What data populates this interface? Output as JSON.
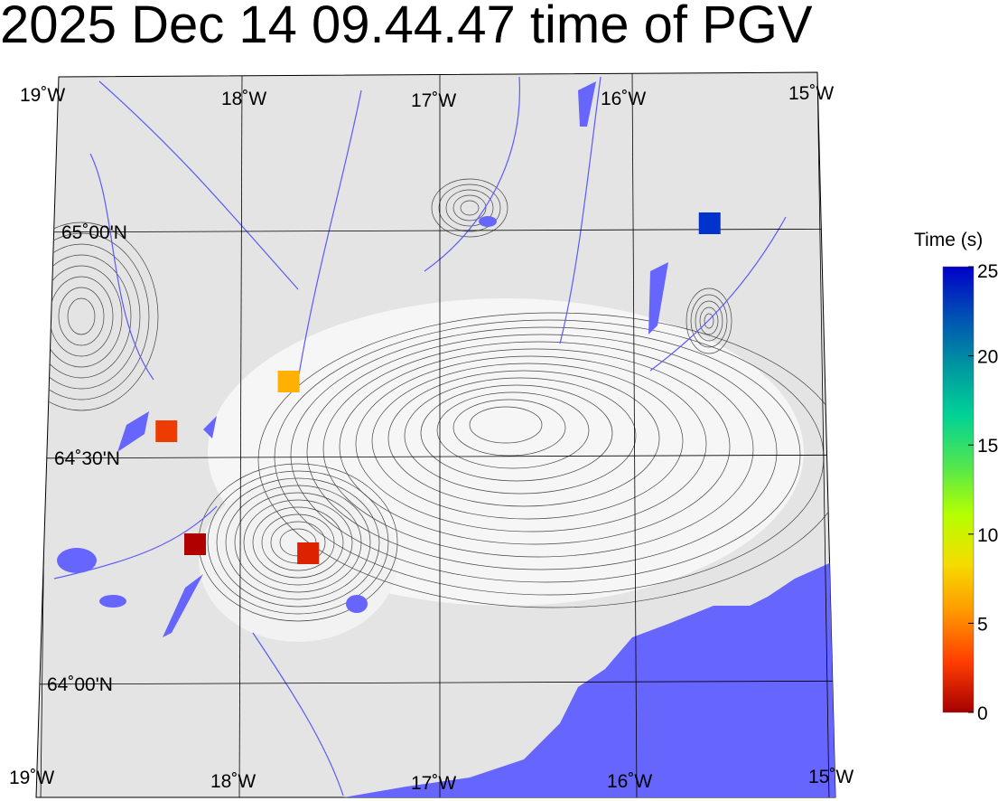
{
  "title": "2025 Dec 14 09.44.47 time of PGV",
  "map": {
    "lon_labels": [
      "19˚W",
      "18˚W",
      "17˚W",
      "16˚W",
      "15˚W"
    ],
    "lat_labels": [
      "65˚00'N",
      "64˚30'N",
      "64˚00'N"
    ],
    "meridians": [
      -19,
      -18,
      -17,
      -16,
      -15
    ],
    "parallels": [
      65.0,
      64.5,
      64.0
    ],
    "colors": {
      "land": "#e6e6e6",
      "sea": "#6666ff",
      "contour": "#333333",
      "river": "#5a5aff",
      "grid": "#000000"
    }
  },
  "colorbar": {
    "label": "Time (s)",
    "range": [
      0,
      25
    ],
    "ticks": [
      "0",
      "5",
      "10",
      "15",
      "20",
      "25"
    ],
    "colormap": [
      "#a50000",
      "#ff3c00",
      "#ff9600",
      "#f5dc00",
      "#b4ff00",
      "#50e650",
      "#00d296",
      "#0096a0",
      "#0050b4",
      "#0000c8"
    ]
  },
  "stations": [
    {
      "lon": -15.59,
      "lat": 65.02,
      "time": 24.5,
      "color": "#0033cc"
    },
    {
      "lon": -17.76,
      "lat": 64.67,
      "time": 10.5,
      "color": "#ffb000"
    },
    {
      "lon": -18.38,
      "lat": 64.56,
      "time": 5,
      "color": "#ee3c00"
    },
    {
      "lon": -18.23,
      "lat": 64.31,
      "time": 1,
      "color": "#b00000"
    },
    {
      "lon": -17.66,
      "lat": 64.29,
      "time": 3,
      "color": "#dd2200"
    }
  ]
}
